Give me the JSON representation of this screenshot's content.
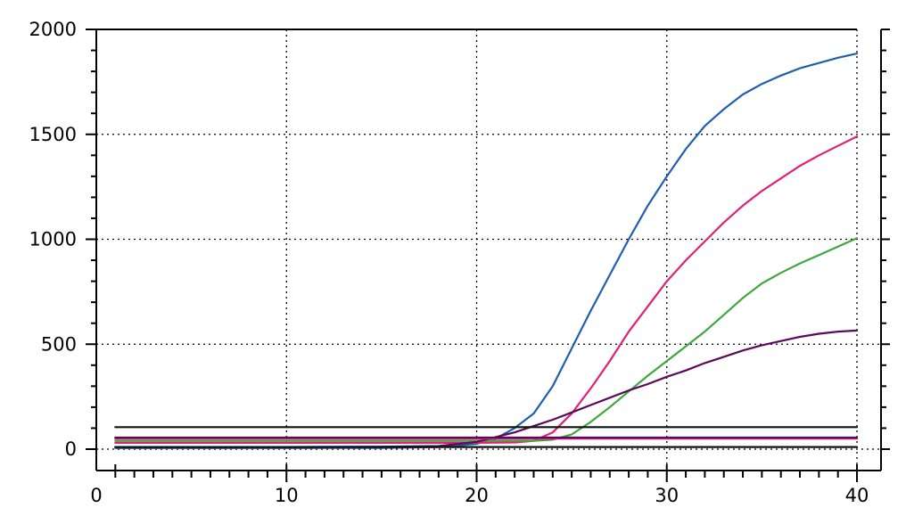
{
  "chart_data": {
    "type": "line",
    "title": "",
    "xlabel": "",
    "ylabel": "",
    "xlim": [
      0,
      40
    ],
    "ylim": [
      -10,
      2000
    ],
    "x_ticks": [
      0,
      10,
      20,
      30,
      40
    ],
    "y_ticks": [
      0,
      500,
      1000,
      1500,
      2000
    ],
    "grid": true,
    "legend": "none",
    "series": [
      {
        "color": "#1f5fb0",
        "x": [
          1,
          5,
          10,
          15,
          18,
          20,
          21,
          22,
          23,
          24,
          25,
          26,
          27,
          28,
          29,
          30,
          31,
          32,
          33,
          34,
          35,
          36,
          37,
          38,
          39,
          40
        ],
        "y": [
          5,
          5,
          5,
          6,
          10,
          25,
          50,
          100,
          170,
          300,
          480,
          660,
          830,
          1000,
          1160,
          1300,
          1430,
          1540,
          1620,
          1690,
          1740,
          1780,
          1815,
          1840,
          1865,
          1885
        ]
      },
      {
        "color": "#e0207a",
        "x": [
          1,
          5,
          10,
          15,
          20,
          22,
          23,
          24,
          25,
          26,
          27,
          28,
          29,
          30,
          31,
          32,
          33,
          34,
          35,
          36,
          37,
          38,
          39,
          40
        ],
        "y": [
          30,
          30,
          30,
          30,
          30,
          32,
          40,
          80,
          170,
          290,
          420,
          560,
          680,
          800,
          900,
          990,
          1080,
          1160,
          1230,
          1290,
          1350,
          1400,
          1445,
          1490
        ]
      },
      {
        "color": "#3ea83e",
        "x": [
          1,
          5,
          10,
          15,
          20,
          23,
          24,
          25,
          26,
          27,
          28,
          29,
          30,
          31,
          32,
          33,
          34,
          35,
          36,
          37,
          38,
          39,
          40
        ],
        "y": [
          40,
          40,
          40,
          40,
          40,
          40,
          45,
          70,
          130,
          200,
          275,
          350,
          420,
          490,
          560,
          640,
          720,
          790,
          840,
          885,
          925,
          965,
          1005
        ]
      },
      {
        "color": "#5a0a5a",
        "x": [
          1,
          5,
          10,
          15,
          18,
          20,
          22,
          23,
          24,
          25,
          26,
          27,
          28,
          29,
          30,
          31,
          32,
          33,
          34,
          35,
          36,
          37,
          38,
          39,
          40
        ],
        "y": [
          10,
          10,
          10,
          12,
          15,
          35,
          80,
          110,
          140,
          175,
          210,
          245,
          280,
          310,
          345,
          375,
          410,
          440,
          470,
          495,
          515,
          535,
          550,
          560,
          565
        ]
      },
      {
        "color": "#111111",
        "x": [
          1,
          40
        ],
        "y": [
          105,
          105
        ]
      },
      {
        "color": "#111111",
        "x": [
          1,
          40
        ],
        "y": [
          10,
          10
        ]
      },
      {
        "color": "#e0207a",
        "x": [
          1,
          40
        ],
        "y": [
          50,
          50
        ]
      },
      {
        "color": "#5a0a5a",
        "x": [
          1,
          40
        ],
        "y": [
          55,
          55
        ]
      }
    ]
  }
}
